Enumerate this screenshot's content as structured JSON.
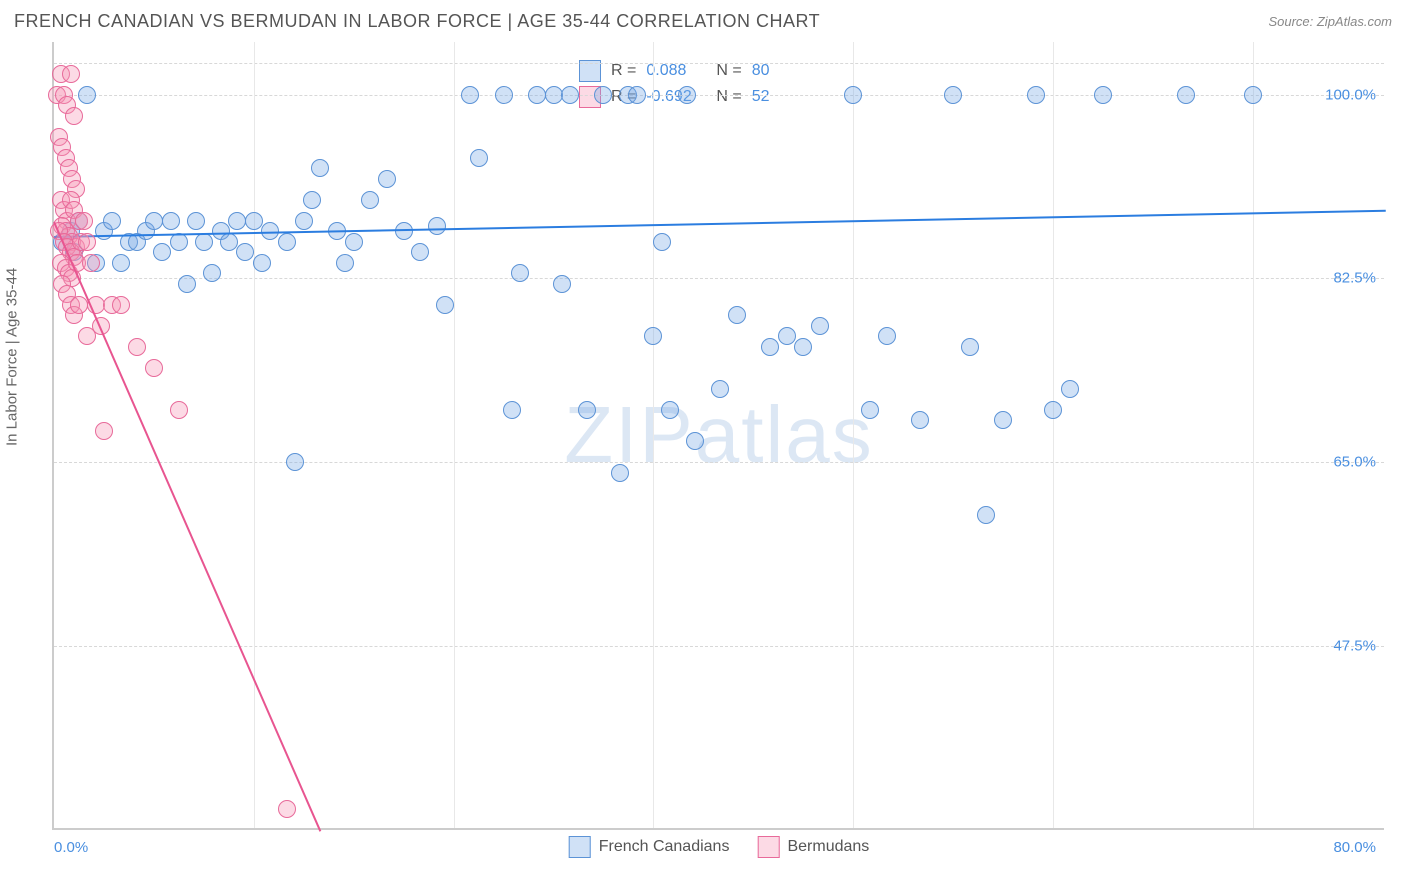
{
  "header": {
    "title": "FRENCH CANADIAN VS BERMUDAN IN LABOR FORCE | AGE 35-44 CORRELATION CHART",
    "source": "Source: ZipAtlas.com"
  },
  "chart": {
    "type": "scatter",
    "watermark": "ZIPatlas",
    "ylabel": "In Labor Force | Age 35-44",
    "plot_bg": "#ffffff",
    "grid_color": "#d8d8d8",
    "axis_color": "#cccccc",
    "xlim": [
      0,
      80
    ],
    "ylim": [
      30,
      105
    ],
    "yticks": [
      {
        "v": 47.5,
        "label": "47.5%"
      },
      {
        "v": 65.0,
        "label": "65.0%"
      },
      {
        "v": 82.5,
        "label": "82.5%"
      },
      {
        "v": 100.0,
        "label": "100.0%"
      }
    ],
    "xgrid": [
      12,
      24,
      36,
      48,
      60,
      72
    ],
    "xtick_left": "0.0%",
    "xtick_right": "80.0%",
    "tick_color": "#4a8fe0",
    "marker_radius": 9,
    "marker_stroke_width": 1.3,
    "series": [
      {
        "name": "French Canadians",
        "fill": "rgba(120,170,230,0.35)",
        "stroke": "#5c93d6",
        "line_color": "#2b7de0",
        "reg": {
          "x1": 0,
          "y1": 86.5,
          "x2": 80,
          "y2": 89.0
        },
        "stats": {
          "R": "0.088",
          "N": "80"
        },
        "points": [
          [
            1,
            87
          ],
          [
            1.5,
            88
          ],
          [
            2,
            100
          ],
          [
            2.5,
            84
          ],
          [
            3,
            87
          ],
          [
            3.5,
            88
          ],
          [
            4,
            84
          ],
          [
            4.5,
            86
          ],
          [
            5,
            86
          ],
          [
            5.5,
            87
          ],
          [
            6,
            88
          ],
          [
            6.5,
            85
          ],
          [
            7,
            88
          ],
          [
            7.5,
            86
          ],
          [
            8,
            82
          ],
          [
            8.5,
            88
          ],
          [
            9,
            86
          ],
          [
            9.5,
            83
          ],
          [
            10,
            87
          ],
          [
            10.5,
            86
          ],
          [
            11,
            88
          ],
          [
            11.5,
            85
          ],
          [
            12,
            88
          ],
          [
            12.5,
            84
          ],
          [
            13,
            87
          ],
          [
            14,
            86
          ],
          [
            14.5,
            65
          ],
          [
            15,
            88
          ],
          [
            15.5,
            90
          ],
          [
            16,
            93
          ],
          [
            17,
            87
          ],
          [
            17.5,
            84
          ],
          [
            18,
            86
          ],
          [
            19,
            90
          ],
          [
            20,
            92
          ],
          [
            21,
            87
          ],
          [
            22,
            85
          ],
          [
            23,
            87.5
          ],
          [
            23.5,
            80
          ],
          [
            25,
            100
          ],
          [
            25.5,
            94
          ],
          [
            27,
            100
          ],
          [
            27.5,
            70
          ],
          [
            28,
            83
          ],
          [
            29,
            100
          ],
          [
            30,
            100
          ],
          [
            30.5,
            82
          ],
          [
            31,
            100
          ],
          [
            32,
            70
          ],
          [
            33,
            100
          ],
          [
            34,
            64
          ],
          [
            34.5,
            100
          ],
          [
            35,
            100
          ],
          [
            36,
            77
          ],
          [
            36.5,
            86
          ],
          [
            37,
            70
          ],
          [
            38,
            100
          ],
          [
            38.5,
            67
          ],
          [
            40,
            72
          ],
          [
            41,
            79
          ],
          [
            43,
            76
          ],
          [
            44,
            77
          ],
          [
            45,
            76
          ],
          [
            46,
            78
          ],
          [
            48,
            100
          ],
          [
            49,
            70
          ],
          [
            50,
            77
          ],
          [
            52,
            69
          ],
          [
            54,
            100
          ],
          [
            55,
            76
          ],
          [
            56,
            60
          ],
          [
            57,
            69
          ],
          [
            59,
            100
          ],
          [
            60,
            70
          ],
          [
            61,
            72
          ],
          [
            63,
            100
          ],
          [
            68,
            100
          ],
          [
            72,
            100
          ],
          [
            0.5,
            86
          ],
          [
            1.2,
            85
          ]
        ]
      },
      {
        "name": "Bermudans",
        "fill": "rgba(245,150,180,0.35)",
        "stroke": "#e86a9a",
        "line_color": "#e85590",
        "reg": {
          "x1": 0,
          "y1": 88.0,
          "x2": 16,
          "y2": 30.0
        },
        "stats": {
          "R": "-0.692",
          "N": "52"
        },
        "points": [
          [
            0.2,
            100
          ],
          [
            0.4,
            102
          ],
          [
            0.6,
            100
          ],
          [
            0.8,
            99
          ],
          [
            1.0,
            102
          ],
          [
            1.2,
            98
          ],
          [
            0.3,
            96
          ],
          [
            0.5,
            95
          ],
          [
            0.7,
            94
          ],
          [
            0.9,
            93
          ],
          [
            1.1,
            92
          ],
          [
            1.3,
            91
          ],
          [
            0.4,
            90
          ],
          [
            0.6,
            89
          ],
          [
            0.8,
            88
          ],
          [
            1.0,
            90
          ],
          [
            1.2,
            89
          ],
          [
            0.5,
            87.5
          ],
          [
            0.7,
            87
          ],
          [
            0.9,
            86.5
          ],
          [
            1.1,
            86
          ],
          [
            1.3,
            85.5
          ],
          [
            1.5,
            88
          ],
          [
            0.3,
            87
          ],
          [
            0.6,
            86
          ],
          [
            0.8,
            85.5
          ],
          [
            1.0,
            85
          ],
          [
            1.2,
            84.5
          ],
          [
            0.4,
            84
          ],
          [
            0.7,
            83.5
          ],
          [
            0.9,
            83
          ],
          [
            1.1,
            82.5
          ],
          [
            0.5,
            82
          ],
          [
            0.8,
            81
          ],
          [
            1.0,
            80
          ],
          [
            1.2,
            79
          ],
          [
            1.4,
            84
          ],
          [
            1.6,
            86
          ],
          [
            1.8,
            88
          ],
          [
            2.0,
            86
          ],
          [
            2.2,
            84
          ],
          [
            2.5,
            80
          ],
          [
            2.8,
            78
          ],
          [
            3.5,
            80
          ],
          [
            4.0,
            80
          ],
          [
            1.5,
            80
          ],
          [
            2.0,
            77
          ],
          [
            3.0,
            68
          ],
          [
            5.0,
            76
          ],
          [
            6.0,
            74
          ],
          [
            7.5,
            70
          ],
          [
            14,
            32
          ]
        ]
      }
    ],
    "legend": [
      {
        "label": "French Canadians",
        "fill": "rgba(120,170,230,0.35)",
        "stroke": "#5c93d6"
      },
      {
        "label": "Bermudans",
        "fill": "rgba(245,150,180,0.35)",
        "stroke": "#e86a9a"
      }
    ]
  }
}
